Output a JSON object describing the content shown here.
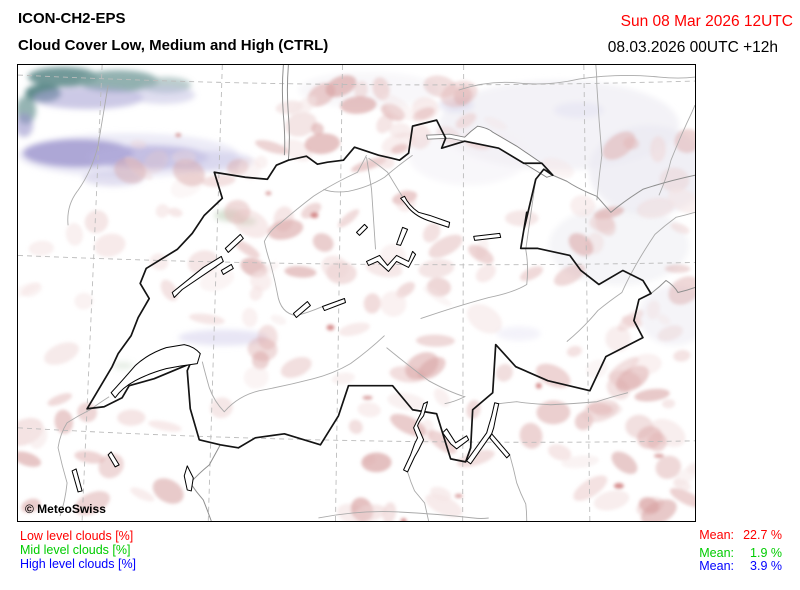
{
  "header": {
    "model": "ICON-CH2-EPS",
    "product": "Cloud Cover Low, Medium and High (CTRL)"
  },
  "datetime": {
    "valid": "Sun 08 Mar 2026 12UTC",
    "run": "08.03.2026 00UTC +12h"
  },
  "map": {
    "copyright": "© MeteoSwiss"
  },
  "legend": {
    "items": [
      {
        "label": "Low level clouds [%]",
        "color": "#ff0000",
        "mean_label": "Mean:",
        "mean_value": "22.7 %"
      },
      {
        "label": "Mid level clouds [%]",
        "color": "#00cc00",
        "mean_label": "Mean:",
        "mean_value": "1.9 %"
      },
      {
        "label": "High level clouds [%]",
        "color": "#0000ff",
        "mean_label": "Mean:",
        "mean_value": "3.9 %"
      }
    ]
  },
  "colors": {
    "valid_text": "#ff0000",
    "frame": "#000000",
    "gridline": "#bcbcbc",
    "country_border": "#8f8f8f",
    "swiss_border": "#141414",
    "river": "#aaaaaa",
    "shade_low_clouds": "#e6c2c2",
    "shade_mid_clouds": "#9db89d",
    "shade_high_clouds": "#a7a1d3",
    "shade_overlap_teal": "#6a9493",
    "shade_pale": "#eeedf4"
  }
}
